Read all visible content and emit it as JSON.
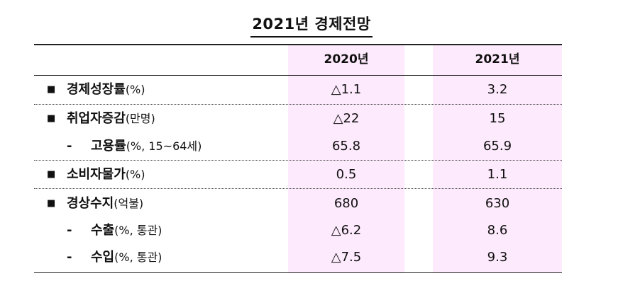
{
  "title": "2021년 경제전망",
  "headers": {
    "col1": "2020년",
    "col2": "2021년"
  },
  "rows": [
    {
      "marker": "■",
      "name": "경제성장률",
      "unit": "(%)",
      "v2020": "△1.1",
      "v2021": "3.2"
    },
    {
      "marker": "■",
      "name": "취업자증감",
      "unit": "(만명)",
      "v2020": "△22",
      "v2021": "15"
    },
    {
      "marker": "-",
      "name": "고용률",
      "unit": "(%, 15~64세)",
      "v2020": "65.8",
      "v2021": "65.9"
    },
    {
      "marker": "■",
      "name": "소비자물가",
      "unit": "(%)",
      "v2020": "0.5",
      "v2021": "1.1"
    },
    {
      "marker": "■",
      "name": "경상수지",
      "unit": "(억불)",
      "v2020": "680",
      "v2021": "630"
    },
    {
      "marker": "-",
      "name": "수출",
      "unit": "(%, 통관)",
      "v2020": "△6.2",
      "v2021": "8.6"
    },
    {
      "marker": "-",
      "name": "수입",
      "unit": "(%, 통관)",
      "v2020": "△7.5",
      "v2021": "9.3"
    }
  ]
}
